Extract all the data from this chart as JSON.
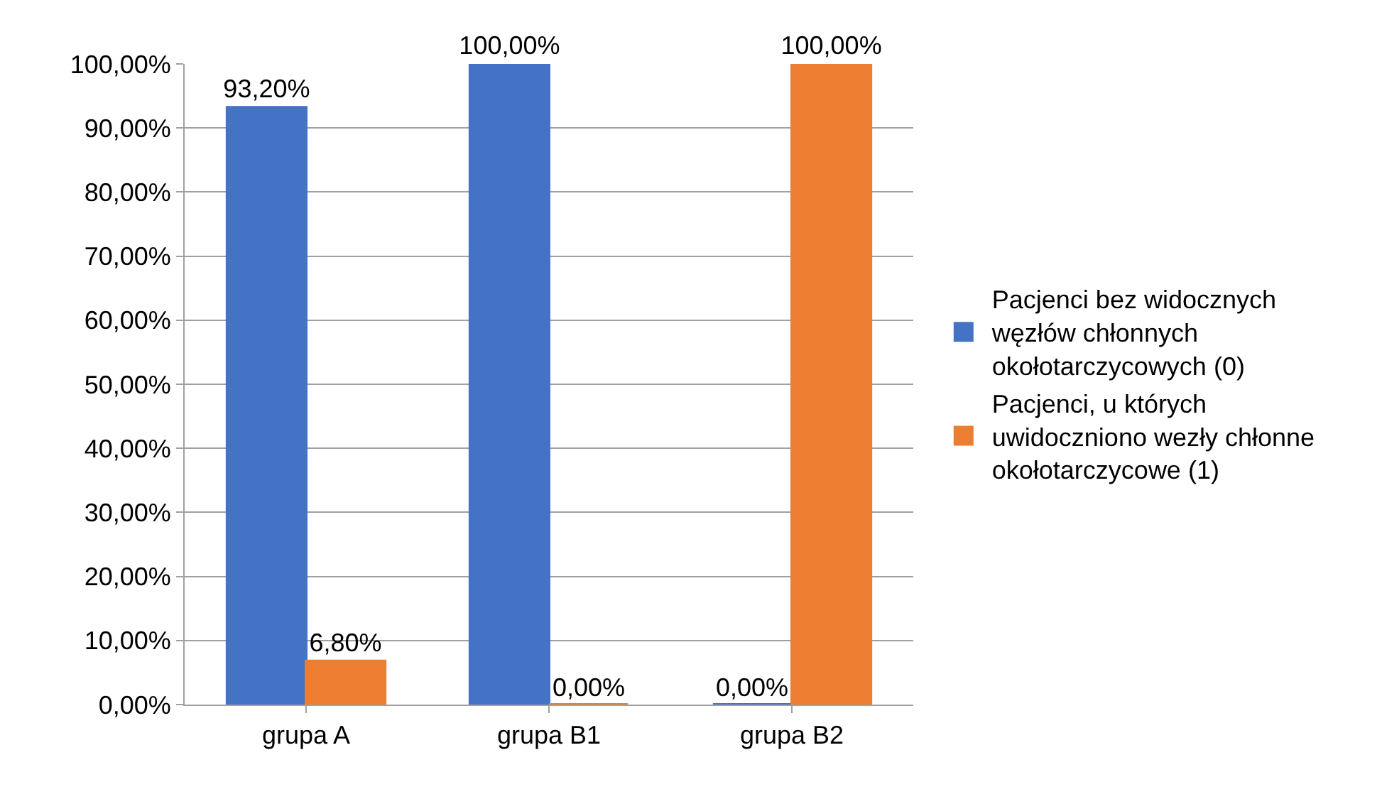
{
  "chart_data": {
    "type": "bar",
    "categories": [
      "grupa A",
      "grupa B1",
      "grupa B2"
    ],
    "series": [
      {
        "name": "Pacjenci bez widocznych węzłów chłonnych okołotarczycowych (0)",
        "color": "#4472c4",
        "values": [
          93.2,
          100,
          0
        ],
        "value_labels": [
          "93,20%",
          "100,00%",
          "0,00%"
        ]
      },
      {
        "name": "Pacjenci, u których uwidoczniono wezły chłonne okołotarczycowe (1)",
        "color": "#ed7d31",
        "values": [
          6.8,
          0,
          100
        ],
        "value_labels": [
          "6,80%",
          "0,00%",
          "100,00%"
        ]
      }
    ],
    "ylim": [
      0,
      100
    ],
    "yticks": [
      {
        "value": 0,
        "label": "0,00%"
      },
      {
        "value": 10,
        "label": "10,00%"
      },
      {
        "value": 20,
        "label": "20,00%"
      },
      {
        "value": 30,
        "label": "30,00%"
      },
      {
        "value": 40,
        "label": "40,00%"
      },
      {
        "value": 50,
        "label": "50,00%"
      },
      {
        "value": 60,
        "label": "60,00%"
      },
      {
        "value": 70,
        "label": "70,00%"
      },
      {
        "value": 80,
        "label": "80,00%"
      },
      {
        "value": 90,
        "label": "90,00%"
      },
      {
        "value": 100,
        "label": "100,00%"
      }
    ],
    "grid": "y",
    "legend": "right"
  }
}
